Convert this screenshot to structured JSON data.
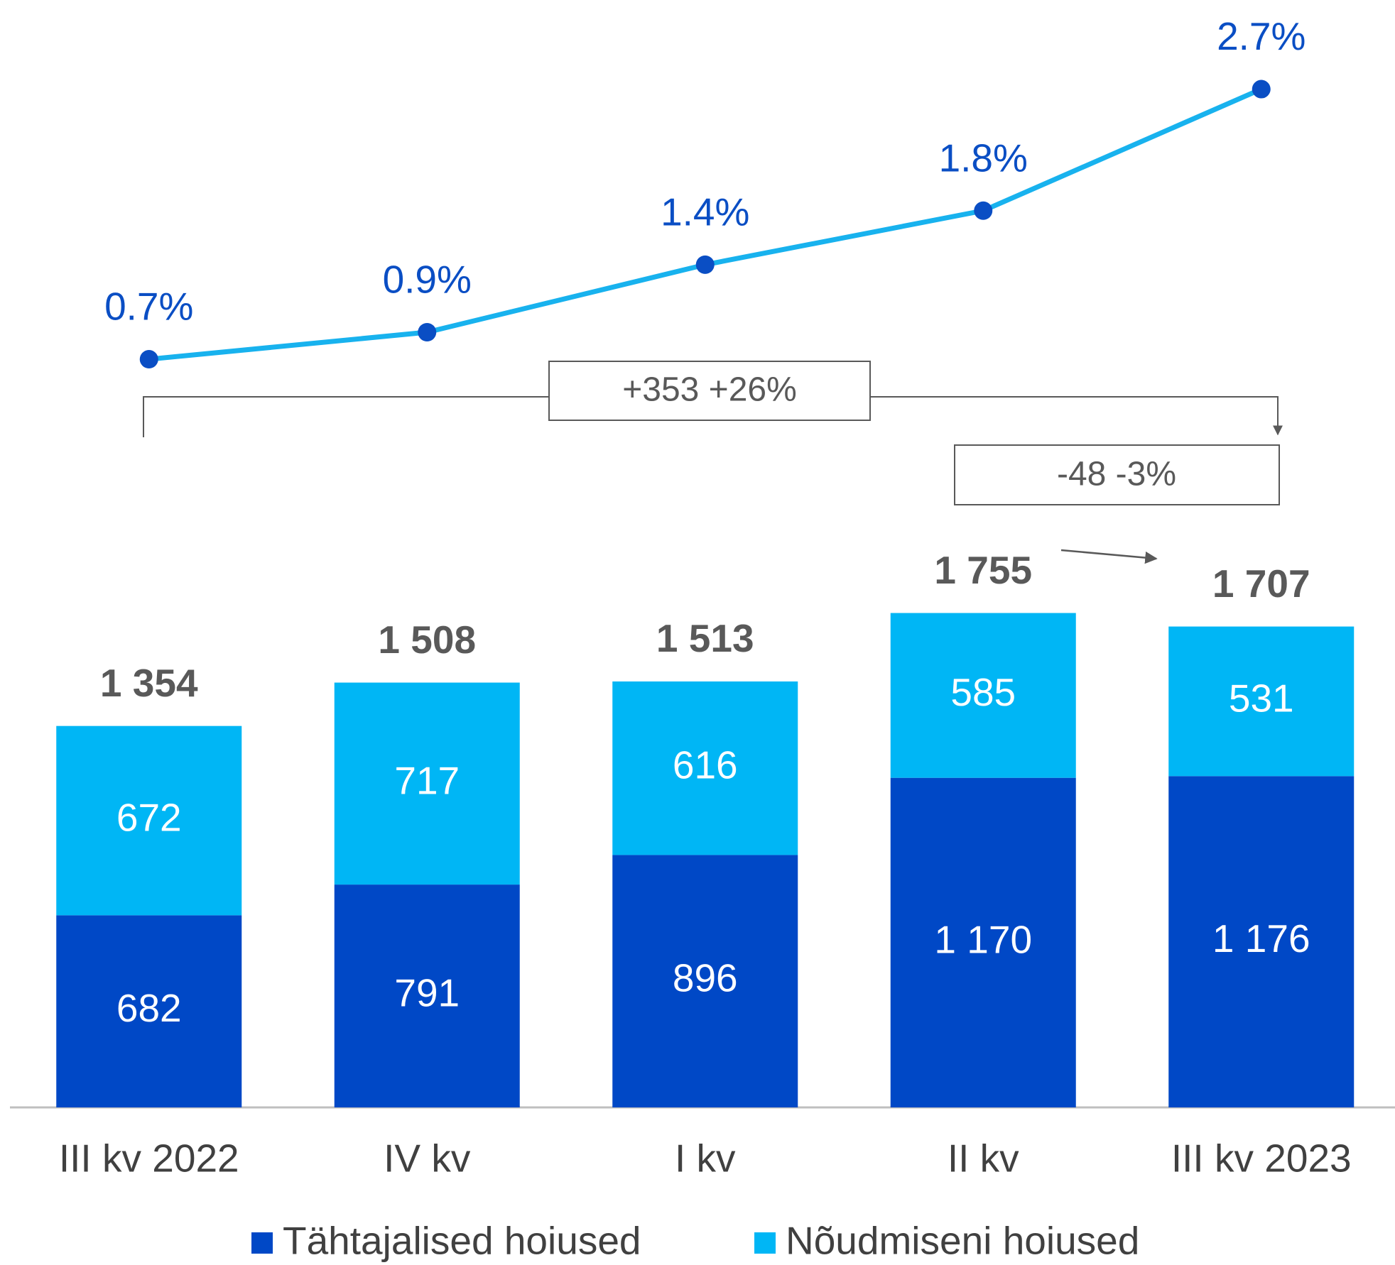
{
  "chart_data": {
    "type": "bar",
    "stacked": true,
    "categories": [
      "III kv 2022",
      "IV kv",
      "I kv",
      "II kv",
      "III kv 2023"
    ],
    "series": [
      {
        "name": "Tähtajalised hoiused",
        "color": "#0048c6",
        "values": [
          682,
          791,
          896,
          1170,
          1176
        ],
        "value_labels": [
          "682",
          "791",
          "896",
          "1 170",
          "1 176"
        ]
      },
      {
        "name": "Nõudmiseni hoiused",
        "color": "#00b6f5",
        "values": [
          672,
          717,
          616,
          585,
          531
        ]
      }
    ],
    "totals": [
      1354,
      1508,
      1513,
      1755,
      1707
    ],
    "total_labels": [
      "1 354",
      "1 508",
      "1 513",
      "1 755",
      "1 707"
    ],
    "line_series": {
      "type": "line",
      "axis": "y2",
      "color": "#18b2ee",
      "marker_color": "#0a4ec4",
      "values": [
        0.7,
        0.9,
        1.4,
        1.8,
        2.7
      ],
      "value_labels": [
        "0.7%",
        "0.9%",
        "1.4%",
        "1.8%",
        "2.7%"
      ]
    },
    "ylim": [
      0,
      3931
    ],
    "y2lim": [
      -4.84,
      3.36
    ],
    "annotations": [
      "+353 +26%",
      "-48 -3%"
    ],
    "legend": "bottom"
  }
}
